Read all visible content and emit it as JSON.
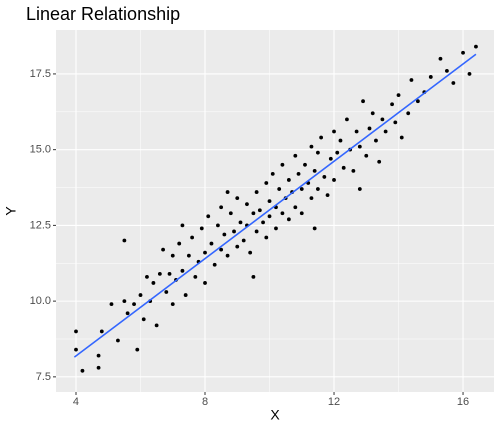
{
  "chart_data": {
    "type": "scatter",
    "title": "Linear Relationship",
    "x_label": "X",
    "y_label": "Y",
    "x": [
      4.0,
      4.0,
      4.2,
      4.7,
      4.8,
      4.7,
      5.1,
      5.3,
      5.5,
      5.5,
      5.6,
      5.8,
      5.9,
      6.0,
      6.1,
      6.2,
      6.3,
      6.4,
      6.5,
      6.6,
      6.7,
      6.8,
      6.9,
      7.0,
      7.0,
      7.1,
      7.2,
      7.3,
      7.4,
      7.5,
      7.6,
      7.7,
      7.8,
      7.9,
      8.0,
      8.0,
      8.1,
      8.2,
      8.3,
      8.4,
      8.5,
      8.5,
      8.6,
      8.7,
      8.8,
      8.9,
      9.0,
      9.0,
      9.1,
      9.2,
      9.3,
      9.3,
      9.4,
      9.5,
      9.6,
      9.6,
      9.7,
      9.8,
      9.9,
      9.9,
      10.0,
      10.0,
      10.1,
      10.2,
      10.2,
      10.3,
      10.4,
      10.4,
      10.5,
      10.6,
      10.6,
      10.7,
      10.8,
      10.8,
      10.9,
      11.0,
      11.0,
      11.1,
      11.2,
      11.3,
      11.3,
      11.4,
      11.5,
      11.5,
      11.6,
      11.7,
      11.8,
      11.9,
      12.0,
      12.0,
      12.1,
      12.2,
      12.3,
      12.4,
      12.5,
      12.6,
      12.7,
      12.8,
      12.9,
      13.0,
      13.1,
      13.2,
      13.3,
      13.4,
      13.5,
      13.6,
      13.8,
      13.9,
      14.0,
      14.1,
      14.3,
      14.4,
      14.6,
      14.8,
      15.0,
      15.3,
      15.5,
      15.7,
      16.0,
      16.2,
      16.4,
      9.5,
      8.7,
      11.4,
      12.8,
      7.3
    ],
    "y": [
      9.0,
      8.4,
      7.7,
      7.8,
      9.0,
      8.2,
      9.9,
      8.7,
      10.0,
      12.0,
      9.6,
      9.9,
      8.4,
      10.2,
      9.4,
      10.8,
      10.0,
      10.6,
      9.2,
      10.9,
      11.7,
      10.3,
      10.9,
      11.5,
      9.9,
      10.7,
      11.9,
      11.0,
      10.2,
      11.5,
      12.1,
      10.8,
      11.3,
      12.4,
      11.6,
      10.6,
      12.8,
      11.9,
      11.2,
      12.5,
      11.7,
      13.1,
      12.2,
      11.5,
      12.9,
      12.3,
      11.8,
      13.4,
      12.6,
      12.0,
      13.2,
      12.5,
      11.6,
      12.9,
      13.6,
      12.3,
      13.0,
      12.6,
      13.9,
      12.1,
      13.3,
      12.8,
      14.2,
      13.1,
      12.4,
      13.7,
      12.9,
      14.5,
      13.4,
      12.7,
      14.0,
      13.6,
      14.8,
      13.1,
      14.2,
      13.7,
      12.9,
      14.5,
      13.9,
      15.1,
      13.4,
      14.3,
      14.9,
      13.7,
      15.4,
      14.1,
      13.5,
      14.7,
      15.6,
      14.0,
      14.9,
      15.3,
      14.4,
      16.0,
      15.0,
      14.3,
      15.6,
      15.1,
      16.6,
      14.8,
      15.7,
      16.2,
      15.3,
      14.6,
      16.0,
      15.6,
      16.5,
      15.9,
      16.8,
      15.4,
      16.2,
      17.3,
      16.6,
      16.9,
      17.4,
      18.0,
      17.6,
      17.2,
      18.2,
      17.5,
      18.4,
      10.8,
      13.6,
      12.4,
      13.7,
      12.5
    ],
    "color": "#000000",
    "fit": {
      "x": [
        3.95,
        16.4
      ],
      "y": [
        8.15,
        18.15
      ],
      "color": "#3366ff"
    },
    "xlim": [
      3.38,
      16.96
    ],
    "ylim": [
      7.0,
      18.95
    ],
    "xticks": [
      4,
      8,
      12,
      16
    ],
    "yticks": [
      7.5,
      {
        "value": 10,
        "label": "10.0"
      },
      12.5,
      {
        "value": 15,
        "label": "15.0"
      },
      17.5
    ],
    "grid": true
  }
}
